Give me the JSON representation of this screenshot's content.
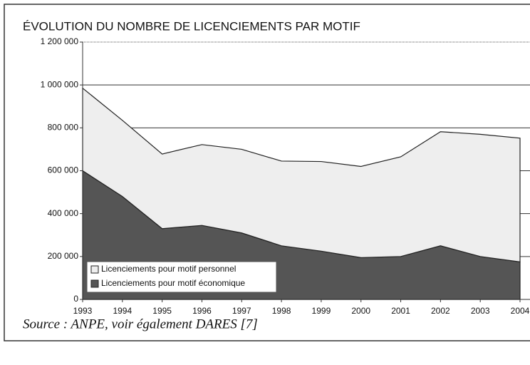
{
  "chart_data": {
    "type": "stacked-area",
    "title": "ÉVOLUTION DU NOMBRE DE LICENCIEMENTS PAR MOTIF",
    "source": "Source : ANPE, voir également DARES [7]",
    "categories": [
      "1993",
      "1994",
      "1995",
      "1996",
      "1997",
      "1998",
      "1999",
      "2000",
      "2001",
      "2002",
      "2003",
      "2004"
    ],
    "series": [
      {
        "name": "Licenciements pour motif économique",
        "color": "#555555",
        "values": [
          600000,
          480000,
          330000,
          345000,
          310000,
          250000,
          225000,
          195000,
          200000,
          250000,
          200000,
          175000
        ]
      },
      {
        "name": "Licenciements pour motif personnel",
        "color": "#eeeeee",
        "values": [
          385000,
          355000,
          348000,
          377000,
          390000,
          395000,
          418000,
          425000,
          465000,
          532000,
          570000,
          577000
        ]
      }
    ],
    "ylim": [
      0,
      1200000
    ],
    "yticks": [
      0,
      {
        "value": 200000,
        "label": "200 000"
      },
      {
        "value": 400000,
        "label": "400 000"
      },
      {
        "value": 600000,
        "label": "600 000"
      },
      {
        "value": 800000,
        "label": "800 000"
      },
      {
        "value": 1000000,
        "label": "1 000 000"
      },
      {
        "value": 1200000,
        "label": "1 200 000"
      }
    ],
    "grid": true,
    "legend": "lower left"
  }
}
